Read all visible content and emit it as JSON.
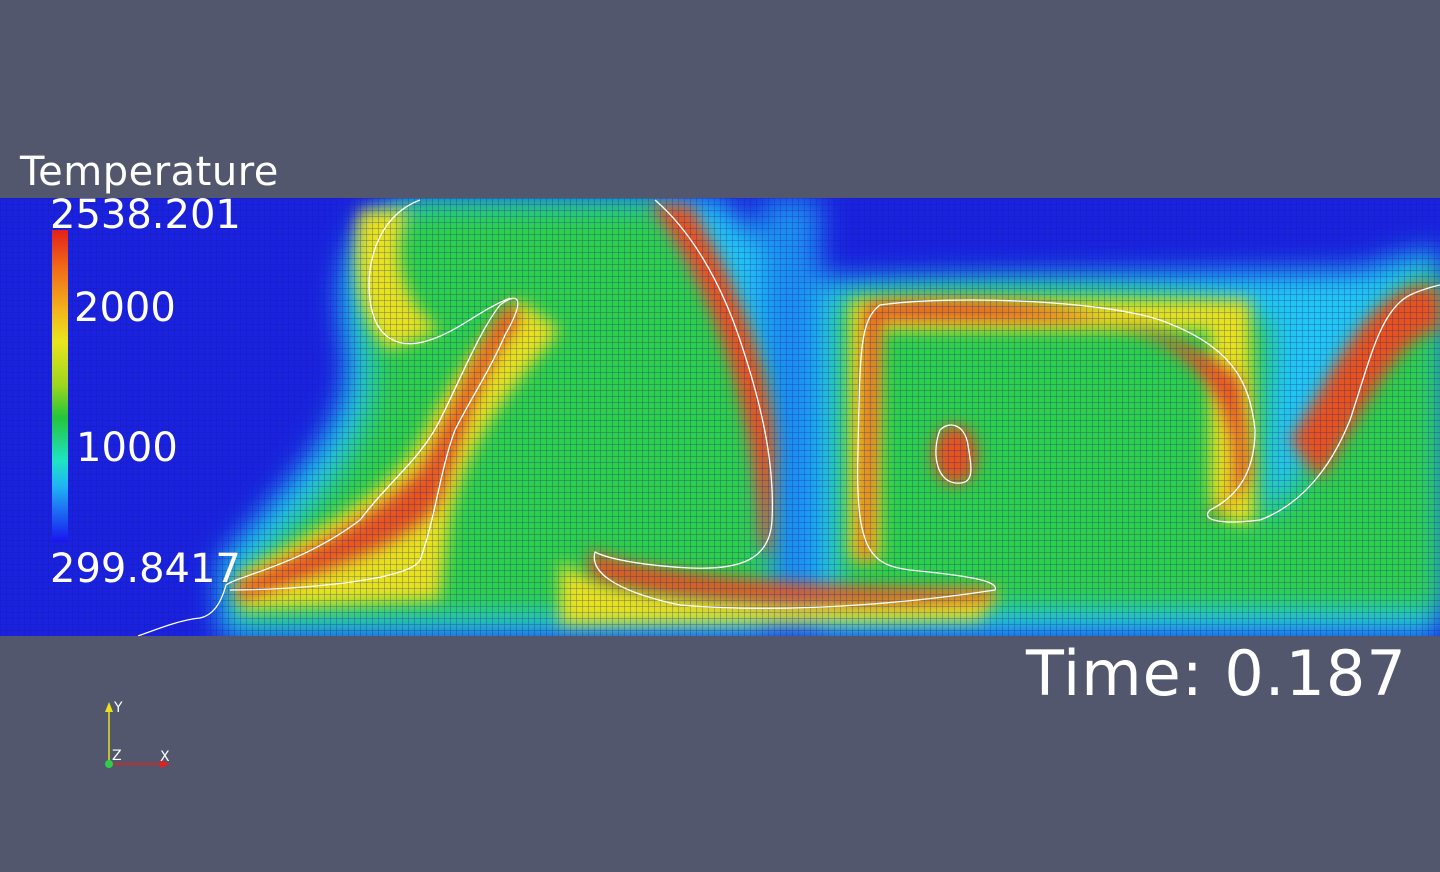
{
  "legend": {
    "title": "Temperature",
    "max_label": "2538.201",
    "ticks": [
      "2000",
      "1000"
    ],
    "min_label": "299.8417",
    "range": [
      299.8417,
      2538.201
    ]
  },
  "annotation": {
    "time_label": "Time: 0.187"
  },
  "orientation_axes": {
    "y_label": "Y",
    "z_label": "Z",
    "x_label": "X"
  },
  "colors": {
    "background": "#52576e",
    "cold": "#1a14ee",
    "hot": "#e3201a",
    "contour": "#ffffff",
    "mesh_lines": "rgba(20,30,160,0.55)"
  }
}
